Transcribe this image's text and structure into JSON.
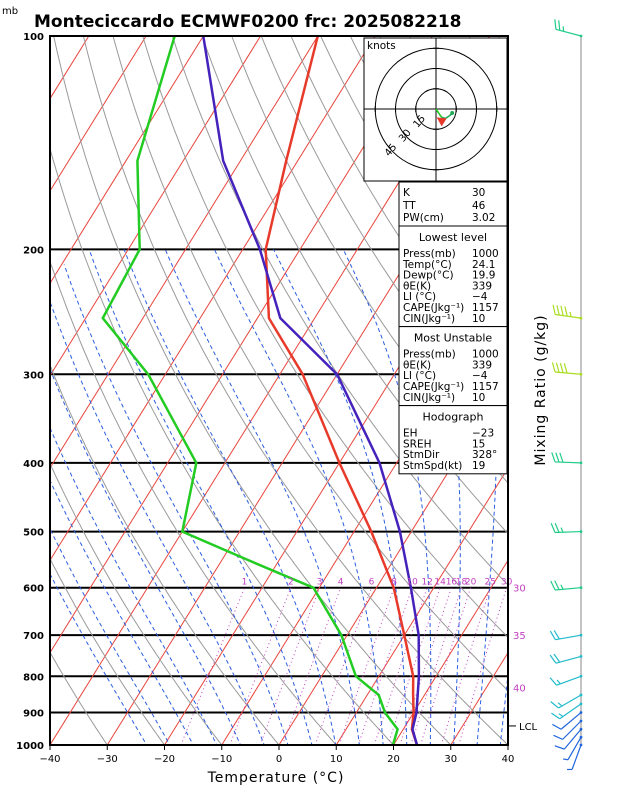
{
  "title": "Monteciccardo ECMWF0200  frc: 2025082218",
  "pressure_unit": "mb",
  "chart_data": {
    "type": "skewt",
    "xlabel": "Temperature (°C)",
    "ylabel": "Mixing Ratio (g/kg)",
    "x_ticks": [
      "−40",
      "−30",
      "−20",
      "−10",
      "0",
      "10",
      "20",
      "30",
      "40"
    ],
    "x_tick_values": [
      -40,
      -30,
      -20,
      -10,
      0,
      10,
      20,
      30,
      40
    ],
    "xlim": [
      -40,
      40
    ],
    "ylim_hpa": [
      1000,
      100
    ],
    "pressure_ticks": [
      100,
      200,
      300,
      400,
      500,
      600,
      700,
      800,
      900,
      1000
    ],
    "pressure_tick_labels": [
      "100",
      "200",
      "300",
      "400",
      "500",
      "600",
      "700",
      "800",
      "900",
      "1000"
    ],
    "mixing_ratio_labels": [
      "1",
      "2",
      "3",
      "4",
      "6",
      "8",
      "10",
      "12",
      "14",
      "16",
      "18",
      "20",
      "25",
      "30"
    ],
    "mixing_ratio_values": [
      1,
      2,
      3,
      4,
      6,
      8,
      10,
      12,
      14,
      16,
      18,
      20,
      25,
      30
    ],
    "thetae_labels": [
      {
        "text": "30",
        "p": 600
      },
      {
        "text": "35",
        "p": 700
      },
      {
        "text": "40",
        "p": 830
      }
    ],
    "lcl_label": "LCL",
    "lcl_p": 940,
    "series": [
      {
        "name": "",
        "color": "#e83a2a",
        "points": [
          [
            1000,
            24.1
          ],
          [
            950,
            21.5
          ],
          [
            900,
            20
          ],
          [
            850,
            18
          ],
          [
            800,
            16
          ],
          [
            700,
            10
          ],
          [
            600,
            3
          ],
          [
            500,
            -7
          ],
          [
            400,
            -20
          ],
          [
            300,
            -36
          ],
          [
            250,
            -48
          ],
          [
            200,
            -56
          ],
          [
            150,
            -62
          ],
          [
            100,
            -70
          ]
        ]
      },
      {
        "name": "",
        "color": "#22cc22",
        "points": [
          [
            1000,
            19.9
          ],
          [
            950,
            19
          ],
          [
            900,
            15
          ],
          [
            850,
            12
          ],
          [
            800,
            6
          ],
          [
            700,
            -1
          ],
          [
            600,
            -11
          ],
          [
            550,
            -25
          ],
          [
            500,
            -40
          ],
          [
            400,
            -45
          ],
          [
            300,
            -63
          ],
          [
            250,
            -77
          ],
          [
            200,
            -78
          ],
          [
            150,
            -88
          ],
          [
            100,
            -95
          ]
        ]
      },
      {
        "name": "",
        "color": "#4422bb",
        "points": [
          [
            1000,
            24.1
          ],
          [
            950,
            21.6
          ],
          [
            900,
            20.5
          ],
          [
            800,
            17
          ],
          [
            700,
            12.5
          ],
          [
            600,
            6
          ],
          [
            500,
            -2
          ],
          [
            400,
            -13
          ],
          [
            300,
            -30
          ],
          [
            250,
            -46
          ],
          [
            200,
            -57
          ],
          [
            150,
            -73
          ],
          [
            100,
            -90
          ]
        ]
      }
    ],
    "winds": [
      {
        "p": 1000,
        "dir": 200,
        "spd": 5
      },
      {
        "p": 975,
        "dir": 210,
        "spd": 8
      },
      {
        "p": 950,
        "dir": 220,
        "spd": 10
      },
      {
        "p": 925,
        "dir": 225,
        "spd": 12
      },
      {
        "p": 900,
        "dir": 230,
        "spd": 14
      },
      {
        "p": 875,
        "dir": 235,
        "spd": 15
      },
      {
        "p": 850,
        "dir": 240,
        "spd": 16
      },
      {
        "p": 800,
        "dir": 250,
        "spd": 18
      },
      {
        "p": 750,
        "dir": 255,
        "spd": 20
      },
      {
        "p": 700,
        "dir": 260,
        "spd": 22
      },
      {
        "p": 600,
        "dir": 265,
        "spd": 25
      },
      {
        "p": 500,
        "dir": 268,
        "spd": 28
      },
      {
        "p": 400,
        "dir": 272,
        "spd": 32
      },
      {
        "p": 300,
        "dir": 275,
        "spd": 40
      },
      {
        "p": 250,
        "dir": 278,
        "spd": 45
      },
      {
        "p": 100,
        "dir": 285,
        "spd": 25
      }
    ],
    "hodograph": {
      "unit_label": "knots",
      "ring_labels": [
        "15",
        "30",
        "45"
      ],
      "ring_values": [
        15,
        30,
        45
      ],
      "trace": [
        [
          0,
          0
        ],
        [
          2,
          -3
        ],
        [
          4,
          -6
        ],
        [
          7,
          -7
        ],
        [
          10,
          -5
        ],
        [
          12,
          -3
        ]
      ],
      "storm_motion": [
        3,
        -6
      ]
    }
  },
  "indices": {
    "K": {
      "label": "K",
      "value": "30"
    },
    "TT": {
      "label": "TT",
      "value": "46"
    },
    "PW": {
      "label": "PW(cm)",
      "value": "3.02"
    }
  },
  "lowest_level": {
    "heading": "Lowest level",
    "rows": [
      {
        "label": "Press(mb)",
        "value": "1000"
      },
      {
        "label": "Temp(°C)",
        "value": "24.1"
      },
      {
        "label": "Dewp(°C)",
        "value": "19.9"
      },
      {
        "label": "θE(K)",
        "value": "339"
      },
      {
        "label": "LI (°C)",
        "value": "−4"
      },
      {
        "label": "CAPE(Jkg⁻¹)",
        "value": "1157"
      },
      {
        "label": "CIN(Jkg⁻¹)",
        "value": "10"
      }
    ]
  },
  "most_unstable": {
    "heading": "Most Unstable",
    "rows": [
      {
        "label": "Press(mb)",
        "value": "1000"
      },
      {
        "label": "θE(K)",
        "value": "339"
      },
      {
        "label": "LI (°C)",
        "value": "−4"
      },
      {
        "label": "CAPE(Jkg⁻¹)",
        "value": "1157"
      },
      {
        "label": "CIN(Jkg⁻¹)",
        "value": "10"
      }
    ]
  },
  "hodograph_table": {
    "heading": "Hodograph",
    "rows": [
      {
        "label": "EH",
        "value": "−23"
      },
      {
        "label": "SREH",
        "value": "15"
      },
      {
        "label": "StmDir",
        "value": "328°"
      },
      {
        "label": "StmSpd(kt)",
        "value": "19"
      }
    ]
  },
  "colors": {
    "isotherm": "#e8453c",
    "dry_adiabat": "#9a9a9a",
    "moist_adiabat": "#2c5ee0",
    "mixing_ratio": "#c040c0",
    "temperature": "#e83a2a",
    "dewpoint": "#22cc22",
    "parcel": "#4422bb"
  }
}
